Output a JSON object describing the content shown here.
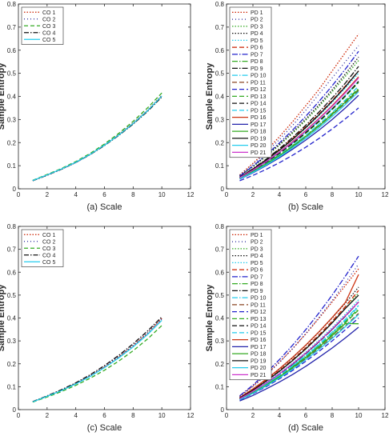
{
  "chart_data": [
    {
      "panel": "a",
      "type": "line",
      "xlabel": "(a) Scale",
      "ylabel": "Sample Entropy",
      "xlim": [
        0,
        12
      ],
      "ylim": [
        0,
        0.8
      ],
      "xticks": [
        "0",
        "2",
        "4",
        "6",
        "8",
        "10",
        "12"
      ],
      "yticks": [
        "0",
        "0.1",
        "0.2",
        "0.3",
        "0.4",
        "0.5",
        "0.6",
        "0.7",
        "0.8"
      ],
      "x": [
        1,
        2,
        3,
        4,
        5,
        6,
        7,
        8,
        9,
        10
      ],
      "legend": "top-left",
      "series": [
        {
          "name": "CO 1",
          "color": "#cc2200",
          "dash": "1.5,2",
          "values": [
            0.035,
            0.06,
            0.085,
            0.115,
            0.15,
            0.19,
            0.235,
            0.285,
            0.34,
            0.405
          ]
        },
        {
          "name": "CO 2",
          "color": "#222299",
          "dash": "1,3",
          "values": [
            0.035,
            0.058,
            0.084,
            0.113,
            0.148,
            0.188,
            0.232,
            0.282,
            0.338,
            0.4
          ]
        },
        {
          "name": "CO 3",
          "color": "#33aa22",
          "dash": "5,3",
          "values": [
            0.037,
            0.062,
            0.088,
            0.118,
            0.153,
            0.194,
            0.24,
            0.292,
            0.35,
            0.415
          ]
        },
        {
          "name": "CO 4",
          "color": "#111111",
          "dash": "6,2,1.5,2",
          "values": [
            0.035,
            0.059,
            0.085,
            0.114,
            0.148,
            0.187,
            0.231,
            0.28,
            0.335,
            0.398
          ]
        },
        {
          "name": "CO 5",
          "color": "#22ccee",
          "dash": "",
          "values": [
            0.036,
            0.06,
            0.086,
            0.115,
            0.149,
            0.189,
            0.233,
            0.283,
            0.338,
            0.402
          ]
        }
      ]
    },
    {
      "panel": "b",
      "type": "line",
      "xlabel": "(b) Scale",
      "ylabel": "Sample Entropy",
      "xlim": [
        0,
        12
      ],
      "ylim": [
        0,
        0.8
      ],
      "xticks": [
        "0",
        "2",
        "4",
        "6",
        "8",
        "10",
        "12"
      ],
      "yticks": [
        "0",
        "0.1",
        "0.2",
        "0.3",
        "0.4",
        "0.5",
        "0.6",
        "0.7",
        "0.8"
      ],
      "x": [
        1,
        2,
        3,
        4,
        5,
        6,
        7,
        8,
        9,
        10
      ],
      "legend": "top-left",
      "series": [
        {
          "name": "PD 1",
          "color": "#cc2200",
          "dash": "1.5,2",
          "values": [
            0.06,
            0.11,
            0.165,
            0.225,
            0.29,
            0.36,
            0.43,
            0.51,
            0.59,
            0.67
          ]
        },
        {
          "name": "PD 2",
          "color": "#222299",
          "dash": "1,3",
          "values": [
            0.058,
            0.105,
            0.157,
            0.213,
            0.274,
            0.34,
            0.41,
            0.48,
            0.55,
            0.62
          ]
        },
        {
          "name": "PD 3",
          "color": "#33aa22",
          "dash": "1.5,2",
          "values": [
            0.055,
            0.095,
            0.14,
            0.188,
            0.24,
            0.296,
            0.356,
            0.42,
            0.487,
            0.555
          ]
        },
        {
          "name": "PD 4",
          "color": "#111111",
          "dash": "1.5,2",
          "values": [
            0.056,
            0.097,
            0.143,
            0.192,
            0.245,
            0.302,
            0.363,
            0.428,
            0.497,
            0.57
          ]
        },
        {
          "name": "PD 5",
          "color": "#22ccee",
          "dash": "1.5,2",
          "values": [
            0.05,
            0.085,
            0.124,
            0.166,
            0.212,
            0.262,
            0.316,
            0.374,
            0.436,
            0.5
          ]
        },
        {
          "name": "PD 6",
          "color": "#cc2200",
          "dash": "6,3",
          "values": [
            0.05,
            0.086,
            0.126,
            0.17,
            0.217,
            0.268,
            0.323,
            0.382,
            0.445,
            0.51
          ]
        },
        {
          "name": "PD 7",
          "color": "#2222cc",
          "dash": "7,2,1.5,2",
          "values": [
            0.055,
            0.098,
            0.146,
            0.198,
            0.254,
            0.314,
            0.378,
            0.446,
            0.518,
            0.595
          ]
        },
        {
          "name": "PD 8",
          "color": "#33aa22",
          "dash": "7,2,1.5,2",
          "values": [
            0.045,
            0.076,
            0.11,
            0.147,
            0.187,
            0.23,
            0.277,
            0.327,
            0.38,
            0.435
          ]
        },
        {
          "name": "PD 9",
          "color": "#111111",
          "dash": "7,2,1.5,2",
          "values": [
            0.05,
            0.087,
            0.128,
            0.173,
            0.222,
            0.275,
            0.332,
            0.393,
            0.458,
            0.53
          ]
        },
        {
          "name": "PD 10",
          "color": "#22ccee",
          "dash": "7,2,1.5,2",
          "values": [
            0.048,
            0.08,
            0.116,
            0.155,
            0.198,
            0.244,
            0.294,
            0.347,
            0.404,
            0.465
          ]
        },
        {
          "name": "PD 11",
          "color": "#884422",
          "dash": "6,3",
          "values": [
            0.045,
            0.074,
            0.107,
            0.143,
            0.182,
            0.225,
            0.271,
            0.32,
            0.372,
            0.425
          ]
        },
        {
          "name": "PD 12",
          "color": "#2222cc",
          "dash": "6,3",
          "values": [
            0.035,
            0.058,
            0.084,
            0.113,
            0.145,
            0.18,
            0.218,
            0.259,
            0.303,
            0.35
          ]
        },
        {
          "name": "PD 13",
          "color": "#33aa22",
          "dash": "6,3",
          "values": [
            0.047,
            0.078,
            0.113,
            0.152,
            0.194,
            0.24,
            0.29,
            0.343,
            0.4,
            0.46
          ]
        },
        {
          "name": "PD 14",
          "color": "#111111",
          "dash": "6,3",
          "values": [
            0.047,
            0.079,
            0.115,
            0.154,
            0.197,
            0.243,
            0.293,
            0.346,
            0.403,
            0.465
          ]
        },
        {
          "name": "PD 15",
          "color": "#22ccee",
          "dash": "6,3",
          "values": [
            0.045,
            0.075,
            0.109,
            0.146,
            0.187,
            0.231,
            0.279,
            0.33,
            0.385,
            0.445
          ]
        },
        {
          "name": "PD 16",
          "color": "#cc3311",
          "dash": "",
          "values": [
            0.048,
            0.081,
            0.118,
            0.159,
            0.204,
            0.252,
            0.304,
            0.36,
            0.42,
            0.485
          ]
        },
        {
          "name": "PD 17",
          "color": "#2222aa",
          "dash": "",
          "values": [
            0.042,
            0.069,
            0.1,
            0.134,
            0.171,
            0.211,
            0.254,
            0.3,
            0.35,
            0.405
          ]
        },
        {
          "name": "PD 18",
          "color": "#33aa22",
          "dash": "",
          "values": [
            0.045,
            0.074,
            0.107,
            0.143,
            0.183,
            0.226,
            0.272,
            0.322,
            0.375,
            0.43
          ]
        },
        {
          "name": "PD 19",
          "color": "#111111",
          "dash": "",
          "values": [
            0.05,
            0.085,
            0.124,
            0.167,
            0.214,
            0.265,
            0.32,
            0.379,
            0.442,
            0.51
          ]
        },
        {
          "name": "PD 20",
          "color": "#22ccee",
          "dash": "",
          "values": [
            0.043,
            0.071,
            0.103,
            0.138,
            0.177,
            0.219,
            0.264,
            0.313,
            0.365,
            0.42
          ]
        },
        {
          "name": "PD 21",
          "color": "#cc33cc",
          "dash": "",
          "values": [
            0.048,
            0.081,
            0.118,
            0.158,
            0.202,
            0.25,
            0.302,
            0.357,
            0.416,
            0.48
          ]
        }
      ]
    },
    {
      "panel": "c",
      "type": "line",
      "xlabel": "(c) Scale",
      "ylabel": "Sample Entropy",
      "xlim": [
        0,
        12
      ],
      "ylim": [
        0,
        0.8
      ],
      "xticks": [
        "0",
        "2",
        "4",
        "6",
        "8",
        "10",
        "12"
      ],
      "yticks": [
        "0",
        "0.1",
        "0.2",
        "0.3",
        "0.4",
        "0.5",
        "0.6",
        "0.7",
        "0.8"
      ],
      "x": [
        1,
        2,
        3,
        4,
        5,
        6,
        7,
        8,
        9,
        10
      ],
      "legend": "top-left",
      "series": [
        {
          "name": "CO 1",
          "color": "#cc2200",
          "dash": "1.5,2",
          "values": [
            0.034,
            0.058,
            0.084,
            0.113,
            0.147,
            0.186,
            0.23,
            0.279,
            0.334,
            0.398
          ]
        },
        {
          "name": "CO 2",
          "color": "#222299",
          "dash": "1,3",
          "values": [
            0.034,
            0.058,
            0.084,
            0.114,
            0.148,
            0.187,
            0.231,
            0.28,
            0.335,
            0.397
          ]
        },
        {
          "name": "CO 3",
          "color": "#33aa22",
          "dash": "5,3",
          "values": [
            0.033,
            0.055,
            0.079,
            0.106,
            0.137,
            0.172,
            0.212,
            0.257,
            0.308,
            0.367
          ]
        },
        {
          "name": "CO 4",
          "color": "#111111",
          "dash": "6,2,1.5,2",
          "values": [
            0.035,
            0.06,
            0.087,
            0.117,
            0.152,
            0.192,
            0.237,
            0.287,
            0.343,
            0.405
          ]
        },
        {
          "name": "CO 5",
          "color": "#22ccee",
          "dash": "",
          "values": [
            0.034,
            0.058,
            0.083,
            0.112,
            0.145,
            0.183,
            0.226,
            0.274,
            0.328,
            0.39
          ]
        }
      ]
    },
    {
      "panel": "d",
      "type": "line",
      "xlabel": "(d) Scale",
      "ylabel": "Sample Entropy",
      "xlim": [
        0,
        12
      ],
      "ylim": [
        0,
        0.8
      ],
      "xticks": [
        "0",
        "2",
        "4",
        "6",
        "8",
        "10",
        "12"
      ],
      "yticks": [
        "0",
        "0.1",
        "0.2",
        "0.3",
        "0.4",
        "0.5",
        "0.6",
        "0.7",
        "0.8"
      ],
      "x": [
        1,
        2,
        3,
        4,
        5,
        6,
        7,
        8,
        9,
        10
      ],
      "legend": "top-left",
      "series": [
        {
          "name": "PD 1",
          "color": "#cc2200",
          "dash": "1.5,2",
          "values": [
            0.058,
            0.103,
            0.153,
            0.207,
            0.266,
            0.33,
            0.399,
            0.47,
            0.542,
            0.615
          ]
        },
        {
          "name": "PD 2",
          "color": "#222299",
          "dash": "1,3",
          "values": [
            0.056,
            0.1,
            0.15,
            0.205,
            0.266,
            0.332,
            0.402,
            0.476,
            0.554,
            0.635
          ]
        },
        {
          "name": "PD 3",
          "color": "#33aa22",
          "dash": "1.5,2",
          "values": [
            0.05,
            0.085,
            0.124,
            0.167,
            0.214,
            0.265,
            0.32,
            0.379,
            0.442,
            0.51
          ]
        },
        {
          "name": "PD 4",
          "color": "#111111",
          "dash": "1.5,2",
          "values": [
            0.052,
            0.089,
            0.13,
            0.176,
            0.226,
            0.28,
            0.338,
            0.4,
            0.465,
            0.535
          ]
        },
        {
          "name": "PD 5",
          "color": "#22ccee",
          "dash": "1.5,2",
          "values": [
            0.048,
            0.081,
            0.118,
            0.159,
            0.203,
            0.251,
            0.303,
            0.358,
            0.417,
            0.48
          ]
        },
        {
          "name": "PD 6",
          "color": "#cc2200",
          "dash": "6,3",
          "values": [
            0.05,
            0.086,
            0.126,
            0.17,
            0.218,
            0.27,
            0.326,
            0.386,
            0.45,
            0.52
          ]
        },
        {
          "name": "PD 7",
          "color": "#2222cc",
          "dash": "7,2,1.5,2",
          "values": [
            0.06,
            0.107,
            0.16,
            0.218,
            0.281,
            0.349,
            0.422,
            0.5,
            0.583,
            0.67
          ]
        },
        {
          "name": "PD 8",
          "color": "#33aa22",
          "dash": "7,2,1.5,2",
          "values": [
            0.045,
            0.075,
            0.109,
            0.146,
            0.187,
            0.231,
            0.279,
            0.33,
            0.385,
            0.44
          ]
        },
        {
          "name": "PD 9",
          "color": "#111111",
          "dash": "7,2,1.5,2",
          "values": [
            0.047,
            0.079,
            0.115,
            0.155,
            0.198,
            0.245,
            0.296,
            0.35,
            0.408,
            0.47
          ]
        },
        {
          "name": "PD 10",
          "color": "#22ccee",
          "dash": "7,2,1.5,2",
          "values": [
            0.046,
            0.077,
            0.112,
            0.15,
            0.192,
            0.237,
            0.286,
            0.338,
            0.394,
            0.455
          ]
        },
        {
          "name": "PD 11",
          "color": "#884422",
          "dash": "6,3",
          "values": [
            0.044,
            0.073,
            0.105,
            0.141,
            0.18,
            0.222,
            0.267,
            0.315,
            0.366,
            0.42
          ]
        },
        {
          "name": "PD 12",
          "color": "#2222cc",
          "dash": "6,3",
          "values": [
            0.042,
            0.069,
            0.1,
            0.134,
            0.171,
            0.211,
            0.254,
            0.3,
            0.349,
            0.4
          ]
        },
        {
          "name": "PD 13",
          "color": "#33aa22",
          "dash": "6,3",
          "values": [
            0.045,
            0.075,
            0.108,
            0.145,
            0.185,
            0.229,
            0.276,
            0.326,
            0.379,
            0.435
          ]
        },
        {
          "name": "PD 14",
          "color": "#111111",
          "dash": "6,3",
          "values": [
            0.047,
            0.079,
            0.115,
            0.155,
            0.198,
            0.245,
            0.296,
            0.35,
            0.408,
            0.47
          ]
        },
        {
          "name": "PD 15",
          "color": "#22ccee",
          "dash": "6,3",
          "values": [
            0.046,
            0.077,
            0.111,
            0.149,
            0.19,
            0.235,
            0.283,
            0.335,
            0.39,
            0.45
          ]
        },
        {
          "name": "PD 16",
          "color": "#cc3311",
          "dash": "",
          "values": [
            0.052,
            0.09,
            0.132,
            0.178,
            0.228,
            0.282,
            0.34,
            0.402,
            0.468,
            0.59
          ]
        },
        {
          "name": "PD 17",
          "color": "#2222aa",
          "dash": "",
          "values": [
            0.038,
            0.062,
            0.09,
            0.12,
            0.153,
            0.189,
            0.228,
            0.269,
            0.313,
            0.36
          ]
        },
        {
          "name": "PD 18",
          "color": "#33aa22",
          "dash": "",
          "values": [
            0.045,
            0.074,
            0.107,
            0.143,
            0.183,
            0.226,
            0.273,
            0.323,
            0.376,
            0.375
          ]
        },
        {
          "name": "PD 19",
          "color": "#111111",
          "dash": "",
          "values": [
            0.05,
            0.085,
            0.124,
            0.167,
            0.214,
            0.265,
            0.32,
            0.379,
            0.442,
            0.5
          ]
        },
        {
          "name": "PD 20",
          "color": "#22ccee",
          "dash": "",
          "values": [
            0.043,
            0.071,
            0.103,
            0.138,
            0.176,
            0.218,
            0.263,
            0.311,
            0.362,
            0.415
          ]
        },
        {
          "name": "PD 21",
          "color": "#cc33cc",
          "dash": "",
          "values": [
            0.047,
            0.08,
            0.116,
            0.156,
            0.2,
            0.247,
            0.298,
            0.352,
            0.41,
            0.47
          ]
        }
      ]
    }
  ]
}
